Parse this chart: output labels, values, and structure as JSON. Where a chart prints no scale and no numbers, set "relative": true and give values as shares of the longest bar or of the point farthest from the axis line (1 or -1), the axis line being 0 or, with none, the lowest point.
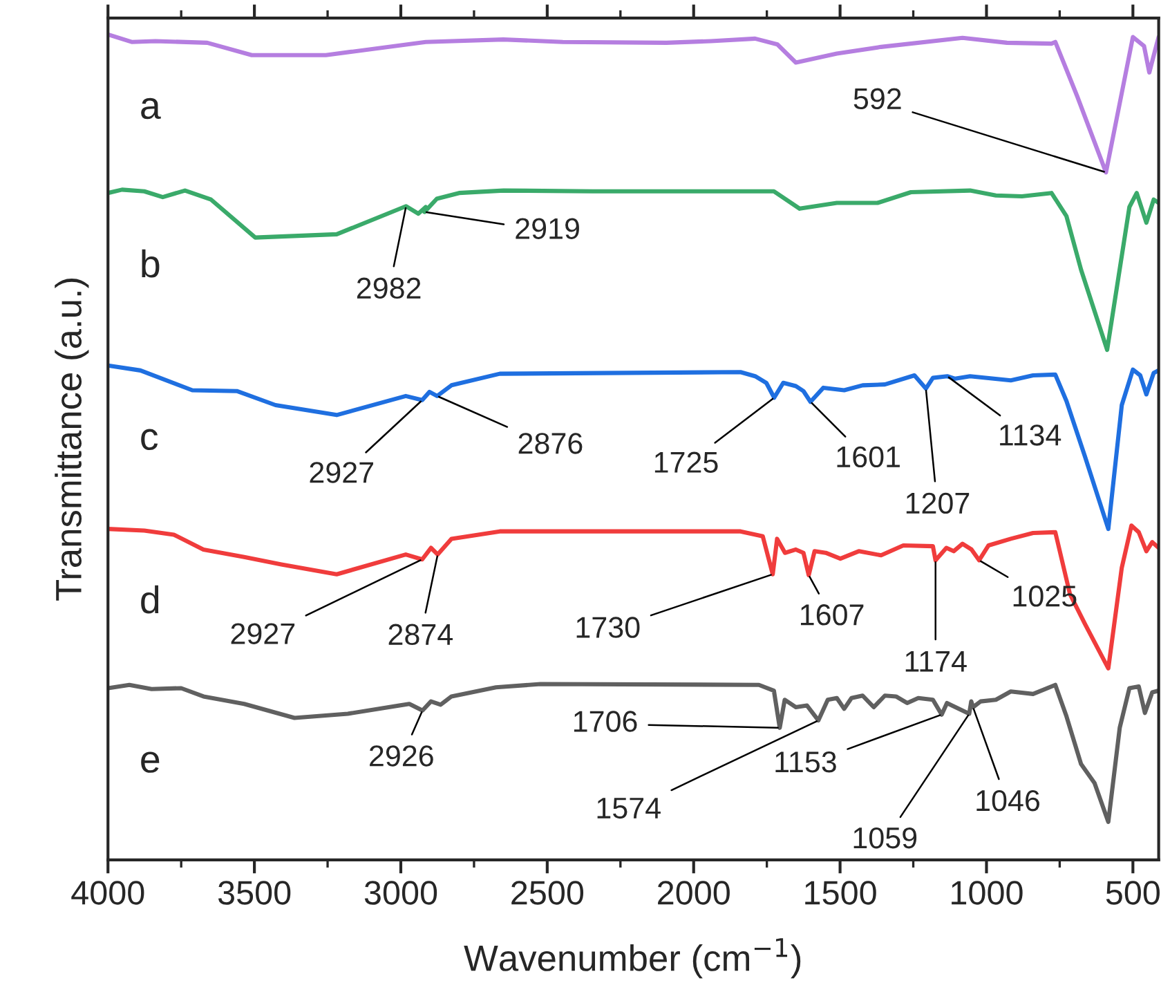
{
  "chart_data": {
    "type": "line",
    "relative": true,
    "xlabel": "Wavenumber (cm$^{−1}$)",
    "ylabel": "Transmittance (a.u.)",
    "xlim": [
      4000,
      412
    ],
    "xticks": [
      4000,
      3500,
      3000,
      2500,
      2000,
      1500,
      1000,
      500
    ],
    "line_style": "solid",
    "series": [
      {
        "name": "a",
        "color": "#b57ee0",
        "x": [
          4000,
          3919,
          3838,
          3661,
          3509,
          3256,
          2915,
          2650,
          2447,
          2093,
          1941,
          1790,
          1714,
          1651,
          1511,
          1360,
          1082,
          930,
          778,
          765,
          690,
          592,
          500,
          462,
          444,
          419,
          412
        ],
        "values": [
          1.0,
          0.991,
          0.992,
          0.99,
          0.975,
          0.975,
          0.991,
          0.994,
          0.991,
          0.99,
          0.992,
          0.995,
          0.988,
          0.966,
          0.977,
          0.985,
          0.996,
          0.99,
          0.989,
          0.991,
          0.925,
          0.833,
          0.997,
          0.986,
          0.954,
          0.988,
          0.997
        ]
      },
      {
        "name": "b",
        "color": "#3aaa6a",
        "x": [
          4000,
          3952,
          3876,
          3813,
          3737,
          3648,
          3497,
          3219,
          2982,
          2940,
          2915,
          2919,
          2877,
          2801,
          2649,
          2346,
          1726,
          1638,
          1511,
          1372,
          1258,
          1056,
          968,
          879,
          778,
          727,
          677,
          588,
          512,
          487,
          454,
          429,
          412
        ],
        "values": [
          0.808,
          0.812,
          0.81,
          0.803,
          0.811,
          0.8,
          0.754,
          0.758,
          0.792,
          0.783,
          0.791,
          0.785,
          0.801,
          0.808,
          0.811,
          0.81,
          0.81,
          0.789,
          0.796,
          0.796,
          0.809,
          0.811,
          0.805,
          0.804,
          0.808,
          0.78,
          0.715,
          0.618,
          0.791,
          0.808,
          0.772,
          0.8,
          0.796
        ]
      },
      {
        "name": "c",
        "color": "#1f6fe0",
        "x": [
          4000,
          3889,
          3712,
          3560,
          3428,
          3219,
          2983,
          2927,
          2902,
          2876,
          2827,
          2662,
          1840,
          1790,
          1752,
          1725,
          1694,
          1651,
          1625,
          1601,
          1557,
          1486,
          1423,
          1347,
          1246,
          1207,
          1183,
          1134,
          1107,
          1056,
          917,
          841,
          765,
          727,
          664,
          584,
          538,
          500,
          475,
          454,
          429,
          412
        ],
        "values": [
          0.599,
          0.593,
          0.569,
          0.568,
          0.551,
          0.539,
          0.562,
          0.557,
          0.567,
          0.562,
          0.575,
          0.589,
          0.591,
          0.586,
          0.578,
          0.56,
          0.578,
          0.574,
          0.568,
          0.555,
          0.572,
          0.569,
          0.575,
          0.576,
          0.587,
          0.571,
          0.584,
          0.586,
          0.583,
          0.586,
          0.581,
          0.587,
          0.588,
          0.556,
          0.489,
          0.401,
          0.551,
          0.594,
          0.587,
          0.564,
          0.59,
          0.593
        ]
      },
      {
        "name": "d",
        "color": "#f03c3c",
        "x": [
          4000,
          3876,
          3775,
          3674,
          3535,
          3408,
          3219,
          2983,
          2927,
          2897,
          2874,
          2827,
          2662,
          1840,
          1764,
          1730,
          1715,
          1688,
          1651,
          1625,
          1607,
          1587,
          1549,
          1499,
          1436,
          1360,
          1284,
          1183,
          1174,
          1137,
          1112,
          1082,
          1051,
          1025,
          993,
          917,
          841,
          765,
          715,
          664,
          584,
          538,
          505,
          480,
          454,
          434,
          412
        ],
        "values": [
          0.401,
          0.399,
          0.394,
          0.376,
          0.367,
          0.358,
          0.346,
          0.37,
          0.364,
          0.378,
          0.37,
          0.389,
          0.398,
          0.398,
          0.392,
          0.346,
          0.389,
          0.372,
          0.376,
          0.372,
          0.345,
          0.374,
          0.372,
          0.365,
          0.374,
          0.369,
          0.381,
          0.38,
          0.363,
          0.378,
          0.374,
          0.383,
          0.376,
          0.363,
          0.381,
          0.389,
          0.396,
          0.397,
          0.322,
          0.286,
          0.232,
          0.354,
          0.405,
          0.397,
          0.374,
          0.385,
          0.378
        ]
      },
      {
        "name": "e",
        "color": "#606060",
        "x": [
          4000,
          3927,
          3851,
          3750,
          3674,
          3535,
          3363,
          3181,
          2971,
          2926,
          2897,
          2864,
          2827,
          2675,
          2523,
          1777,
          1726,
          1706,
          1689,
          1651,
          1613,
          1574,
          1542,
          1511,
          1486,
          1461,
          1423,
          1385,
          1347,
          1309,
          1271,
          1233,
          1183,
          1153,
          1135,
          1118,
          1059,
          1052,
          1046,
          1020,
          968,
          917,
          841,
          765,
          727,
          677,
          631,
          584,
          545,
          512,
          480,
          459,
          434,
          412
        ],
        "values": [
          0.208,
          0.212,
          0.207,
          0.208,
          0.198,
          0.189,
          0.172,
          0.177,
          0.189,
          0.181,
          0.192,
          0.188,
          0.198,
          0.209,
          0.213,
          0.212,
          0.205,
          0.16,
          0.194,
          0.185,
          0.187,
          0.169,
          0.194,
          0.196,
          0.183,
          0.196,
          0.199,
          0.185,
          0.199,
          0.198,
          0.19,
          0.196,
          0.194,
          0.176,
          0.19,
          0.187,
          0.177,
          0.192,
          0.185,
          0.192,
          0.194,
          0.204,
          0.201,
          0.212,
          0.174,
          0.116,
          0.093,
          0.046,
          0.16,
          0.208,
          0.21,
          0.178,
          0.203,
          0.205
        ]
      }
    ],
    "annotations": [
      {
        "text": "592",
        "x": 592,
        "y": 0.833
      },
      {
        "text": "2982",
        "x": 2982,
        "y": 0.792
      },
      {
        "text": "2919",
        "x": 2919,
        "y": 0.785
      },
      {
        "text": "2927",
        "x": 2927,
        "y": 0.557
      },
      {
        "text": "2876",
        "x": 2876,
        "y": 0.562
      },
      {
        "text": "1725",
        "x": 1725,
        "y": 0.56
      },
      {
        "text": "1601",
        "x": 1601,
        "y": 0.555
      },
      {
        "text": "1207",
        "x": 1207,
        "y": 0.571
      },
      {
        "text": "1134",
        "x": 1134,
        "y": 0.586
      },
      {
        "text": "2927",
        "x": 2927,
        "y": 0.364
      },
      {
        "text": "2874",
        "x": 2874,
        "y": 0.37
      },
      {
        "text": "1730",
        "x": 1730,
        "y": 0.346
      },
      {
        "text": "1607",
        "x": 1607,
        "y": 0.345
      },
      {
        "text": "1174",
        "x": 1174,
        "y": 0.363
      },
      {
        "text": "1025",
        "x": 1025,
        "y": 0.363
      },
      {
        "text": "2926",
        "x": 2926,
        "y": 0.181
      },
      {
        "text": "1706",
        "x": 1706,
        "y": 0.16
      },
      {
        "text": "1574",
        "x": 1574,
        "y": 0.169
      },
      {
        "text": "1153",
        "x": 1153,
        "y": 0.176
      },
      {
        "text": "1059",
        "x": 1059,
        "y": 0.177
      },
      {
        "text": "1046",
        "x": 1046,
        "y": 0.185
      }
    ]
  }
}
